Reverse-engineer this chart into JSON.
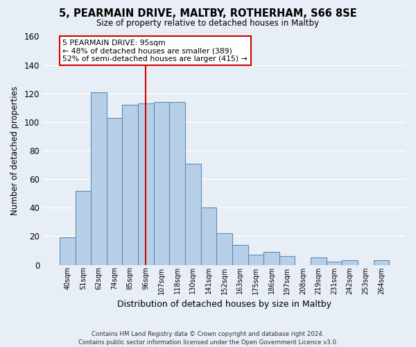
{
  "title": "5, PEARMAIN DRIVE, MALTBY, ROTHERHAM, S66 8SE",
  "subtitle": "Size of property relative to detached houses in Maltby",
  "xlabel": "Distribution of detached houses by size in Maltby",
  "ylabel": "Number of detached properties",
  "bar_labels": [
    "40sqm",
    "51sqm",
    "62sqm",
    "74sqm",
    "85sqm",
    "96sqm",
    "107sqm",
    "118sqm",
    "130sqm",
    "141sqm",
    "152sqm",
    "163sqm",
    "175sqm",
    "186sqm",
    "197sqm",
    "208sqm",
    "219sqm",
    "231sqm",
    "242sqm",
    "253sqm",
    "264sqm"
  ],
  "bar_values": [
    19,
    52,
    121,
    103,
    112,
    113,
    114,
    114,
    71,
    40,
    22,
    14,
    7,
    9,
    6,
    0,
    5,
    2,
    3,
    0,
    3
  ],
  "bar_color": "#b8cfe8",
  "bar_edge_color": "#5b8db8",
  "vline_x_index": 5,
  "vline_color": "#cc0000",
  "ylim": [
    0,
    160
  ],
  "yticks": [
    0,
    20,
    40,
    60,
    80,
    100,
    120,
    140,
    160
  ],
  "annotation_title": "5 PEARMAIN DRIVE: 95sqm",
  "annotation_line1": "← 48% of detached houses are smaller (389)",
  "annotation_line2": "52% of semi-detached houses are larger (415) →",
  "annotation_box_color": "#ffffff",
  "annotation_box_edge": "#cc0000",
  "footer_line1": "Contains HM Land Registry data © Crown copyright and database right 2024.",
  "footer_line2": "Contains public sector information licensed under the Open Government Licence v3.0.",
  "background_color": "#e8eef5",
  "grid_color": "#ffffff"
}
